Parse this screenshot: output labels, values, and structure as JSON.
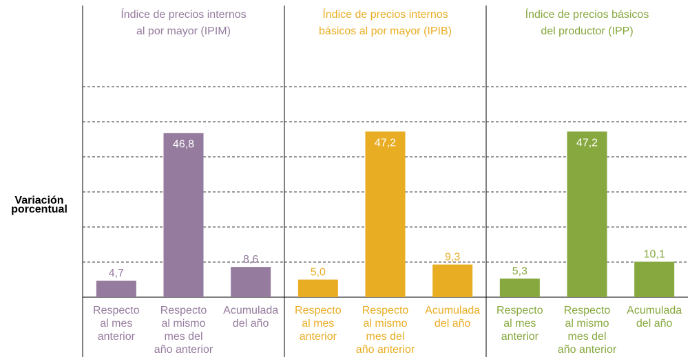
{
  "chart_data": [
    {
      "type": "bar",
      "ylabel": "Variación\nporcentual",
      "title": "Índice de precios internos\nal por mayor (IPIM)",
      "categories": [
        "Respecto\nal mes\nanterior",
        "Respecto\nal mismo\nmes del\naño anterior",
        "Acumulada\ndel año"
      ],
      "values": [
        4.7,
        46.8,
        8.6
      ],
      "value_labels": [
        "4,7",
        "46,8",
        "8,6"
      ],
      "color": "#957b9e",
      "ylim": [
        0,
        60
      ],
      "yticks": [
        10,
        20,
        30,
        40,
        50,
        60
      ],
      "grid": true
    },
    {
      "type": "bar",
      "title": "Índice de precios internos\nbásicos al por mayor (IPIB)",
      "categories": [
        "Respecto\nal mes\nanterior",
        "Respecto\nal mismo\nmes del\naño anterior",
        "Acumulada\ndel año"
      ],
      "values": [
        5.0,
        47.2,
        9.3
      ],
      "value_labels": [
        "5,0",
        "47,2",
        "9,3"
      ],
      "color": "#e9ad23",
      "ylim": [
        0,
        60
      ],
      "yticks": [
        10,
        20,
        30,
        40,
        50,
        60
      ],
      "grid": true
    },
    {
      "type": "bar",
      "title": "Índice de precios básicos\ndel productor (IPP)",
      "categories": [
        "Respecto\nal mes\nanterior",
        "Respecto\nal mismo\nmes del\naño anterior",
        "Acumulada\ndel año"
      ],
      "values": [
        5.3,
        47.2,
        10.1
      ],
      "value_labels": [
        "5,3",
        "47,2",
        "10,1"
      ],
      "color": "#86a83e",
      "ylim": [
        0,
        60
      ],
      "yticks": [
        10,
        20,
        30,
        40,
        50,
        60
      ],
      "grid": true
    }
  ]
}
